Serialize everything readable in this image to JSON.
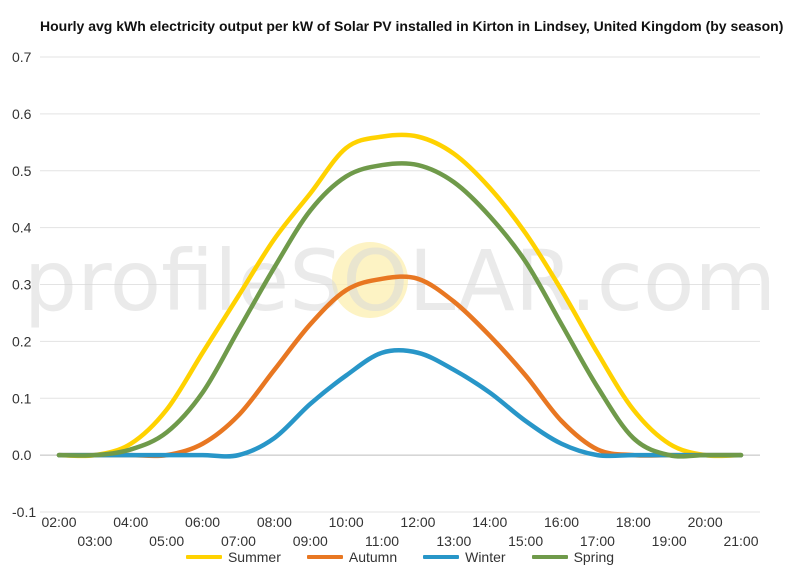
{
  "chart_data": {
    "type": "line",
    "title": "Hourly avg kWh electricity output per kW of Solar PV installed in Kirton in Lindsey, United Kingdom (by season)",
    "xlabel": "",
    "ylabel": "",
    "ylim": [
      -0.1,
      0.7
    ],
    "yticks": [
      "-0.1",
      "0.0",
      "0.1",
      "0.2",
      "0.3",
      "0.4",
      "0.5",
      "0.6",
      "0.7"
    ],
    "x": [
      "02:00",
      "03:00",
      "04:00",
      "05:00",
      "06:00",
      "07:00",
      "08:00",
      "09:00",
      "10:00",
      "11:00",
      "12:00",
      "13:00",
      "14:00",
      "15:00",
      "16:00",
      "17:00",
      "18:00",
      "19:00",
      "20:00",
      "21:00"
    ],
    "grid": true,
    "legend_position": "bottom",
    "series": [
      {
        "name": "Summer",
        "color": "#FFD200",
        "values": [
          0.0,
          0.0,
          0.02,
          0.08,
          0.18,
          0.28,
          0.38,
          0.46,
          0.54,
          0.56,
          0.56,
          0.53,
          0.47,
          0.39,
          0.29,
          0.18,
          0.08,
          0.02,
          0.0,
          0.0
        ]
      },
      {
        "name": "Autumn",
        "color": "#E87722",
        "values": [
          0.0,
          0.0,
          0.0,
          0.0,
          0.02,
          0.07,
          0.15,
          0.23,
          0.29,
          0.31,
          0.31,
          0.27,
          0.21,
          0.14,
          0.06,
          0.01,
          0.0,
          0.0,
          0.0,
          0.0
        ]
      },
      {
        "name": "Winter",
        "color": "#2896C8",
        "values": [
          0.0,
          0.0,
          0.0,
          0.0,
          0.0,
          0.0,
          0.03,
          0.09,
          0.14,
          0.18,
          0.18,
          0.15,
          0.11,
          0.06,
          0.02,
          0.0,
          0.0,
          0.0,
          0.0,
          0.0
        ]
      },
      {
        "name": "Spring",
        "color": "#6F9A4A",
        "values": [
          0.0,
          0.0,
          0.01,
          0.04,
          0.11,
          0.22,
          0.33,
          0.43,
          0.49,
          0.51,
          0.51,
          0.48,
          0.42,
          0.34,
          0.23,
          0.12,
          0.03,
          0.0,
          0.0,
          0.0
        ]
      }
    ],
    "watermark": "profileSOLAR.com"
  }
}
